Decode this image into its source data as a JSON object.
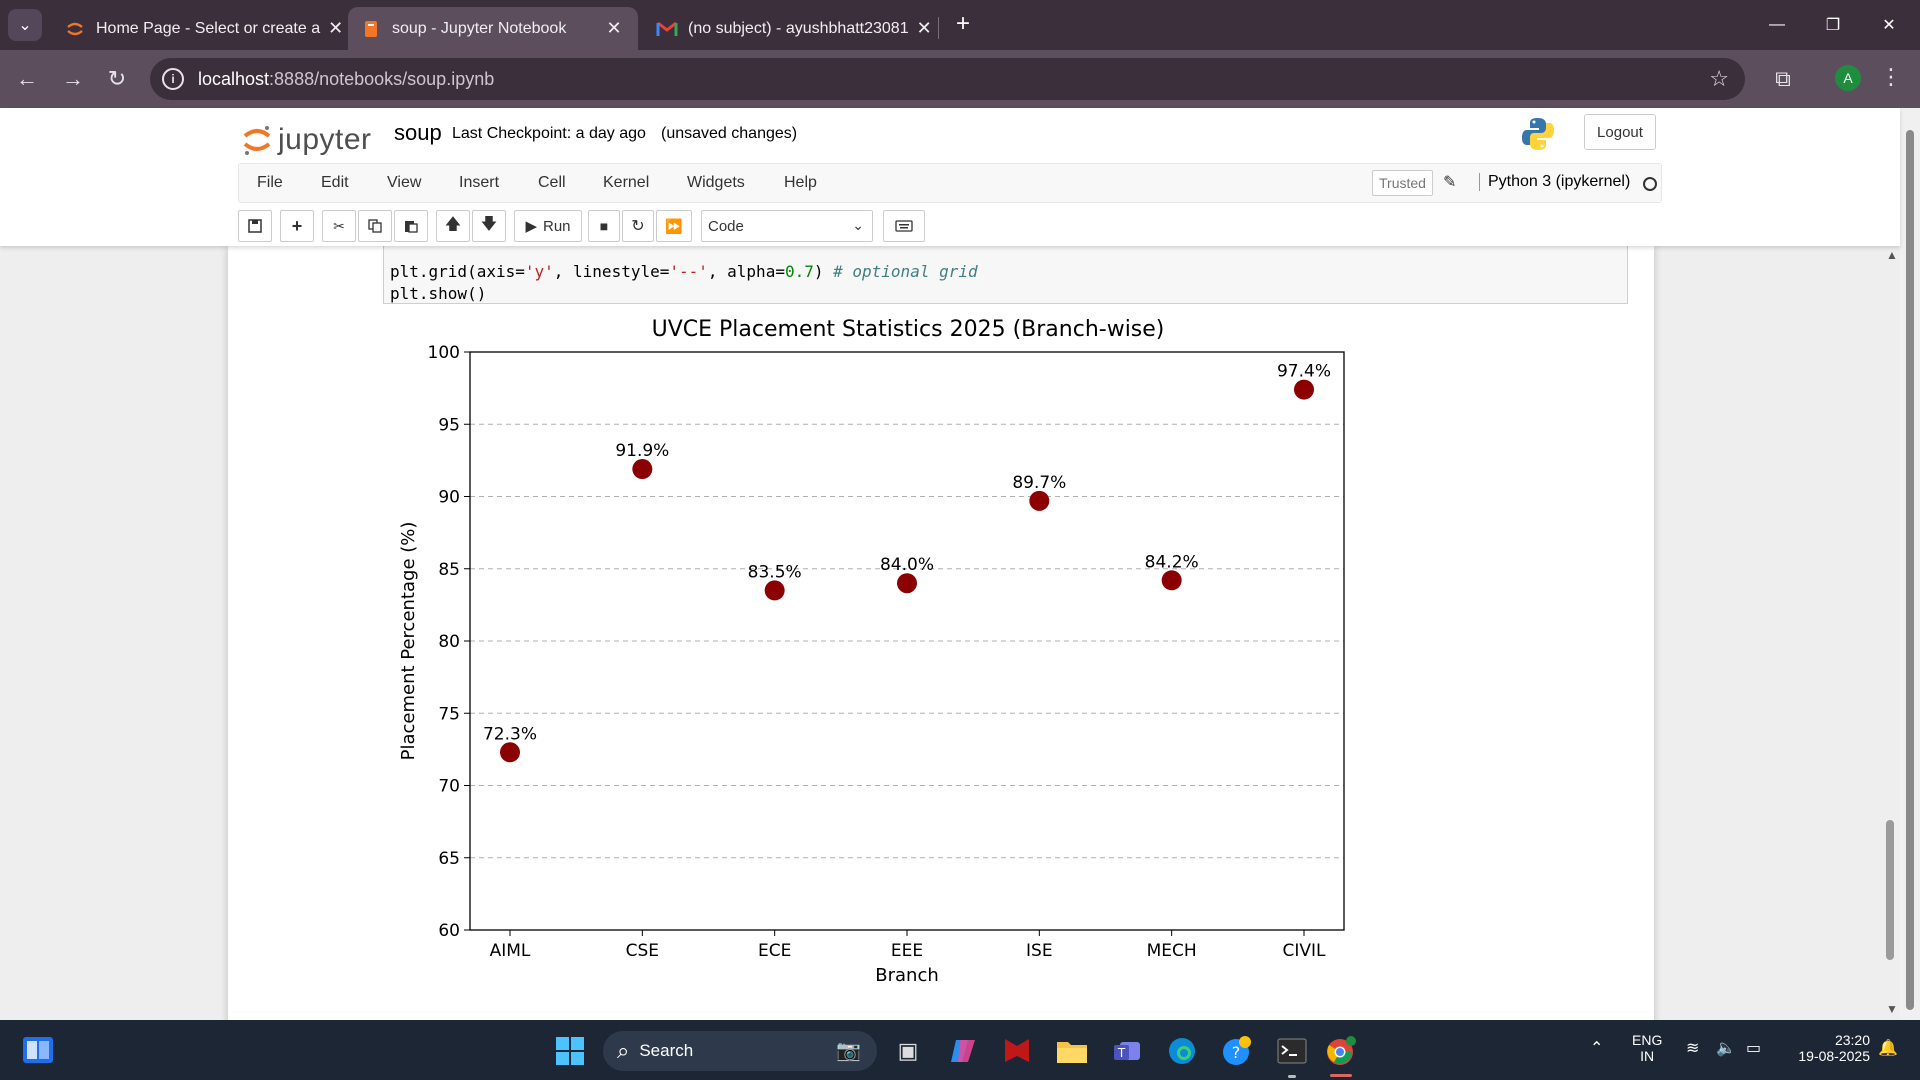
{
  "browser": {
    "tabs": [
      {
        "title": "Home Page - Select or create a",
        "favicon": "jupyter-icon",
        "active": false
      },
      {
        "title": "soup - Jupyter Notebook",
        "favicon": "notebook-icon",
        "active": true
      },
      {
        "title": "(no subject) - ayushbhatt23081",
        "favicon": "gmail-icon",
        "active": false
      }
    ],
    "address": {
      "host": "localhost",
      "path": ":8888/notebooks/soup.ipynb"
    },
    "profile_initial": "A"
  },
  "jupyter": {
    "logo_text": "jupyter",
    "notebook_name": "soup",
    "checkpoint": "Last Checkpoint: a day ago",
    "unsaved": "(unsaved changes)",
    "logout": "Logout",
    "menu": [
      "File",
      "Edit",
      "View",
      "Insert",
      "Cell",
      "Kernel",
      "Widgets",
      "Help"
    ],
    "trusted": "Trusted",
    "kernel": "Python 3 (ipykernel)",
    "toolbar": {
      "run_label": "Run",
      "cell_type": "Code"
    },
    "code_lines": {
      "line1": {
        "a": "plt.grid(axis=",
        "b": "'y'",
        "c": ", linestyle=",
        "d": "'--'",
        "e": ", alpha=",
        "f": "0.7",
        "g": ") ",
        "h": "# optional grid"
      },
      "line2": "plt.show()"
    }
  },
  "chart_data": {
    "type": "scatter",
    "title": "UVCE Placement Statistics 2025 (Branch-wise)",
    "xlabel": "Branch",
    "ylabel": "Placement Percentage (%)",
    "categories": [
      "AIML",
      "CSE",
      "ECE",
      "EEE",
      "ISE",
      "MECH",
      "CIVIL"
    ],
    "values": [
      72.3,
      91.9,
      83.5,
      84.0,
      89.7,
      84.2,
      97.4
    ],
    "data_labels": [
      "72.3%",
      "91.9%",
      "83.5%",
      "84.0%",
      "89.7%",
      "84.2%",
      "97.4%"
    ],
    "ylim": [
      60,
      100
    ],
    "yticks": [
      60,
      65,
      70,
      75,
      80,
      85,
      90,
      95,
      100
    ],
    "grid": "y-dashed",
    "marker_color": "#8b0000"
  },
  "taskbar": {
    "search_label": "Search",
    "lang": "ENG",
    "region": "IN",
    "time": "23:20",
    "date": "19-08-2025"
  }
}
